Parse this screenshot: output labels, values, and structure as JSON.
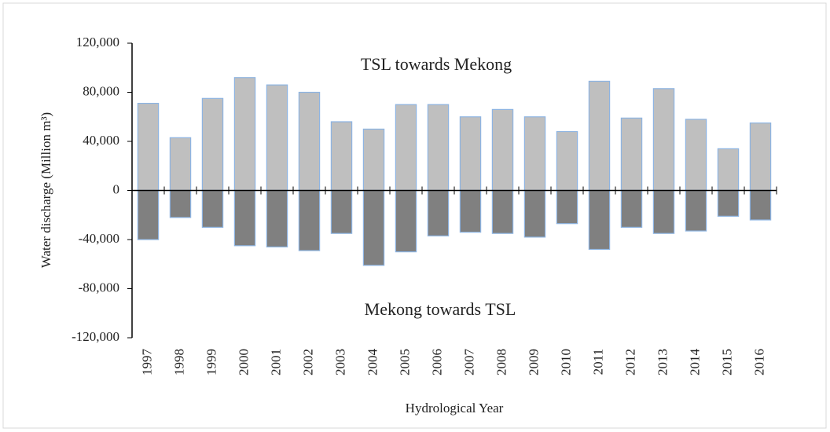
{
  "chart_data": {
    "type": "bar",
    "y_label": "Water discharge (Million m³)",
    "x_label": "Hydrological Year",
    "annotations": [
      "TSL towards Mekong",
      "Mekong towards TSL"
    ],
    "categories": [
      "1997",
      "1998",
      "1999",
      "2000",
      "2001",
      "2002",
      "2003",
      "2004",
      "2005",
      "2006",
      "2007",
      "2008",
      "2009",
      "2010",
      "2011",
      "2012",
      "2013",
      "2014",
      "2015",
      "2016"
    ],
    "series": [
      {
        "color": "#bfbfbf",
        "values": [
          71000,
          43000,
          75000,
          92000,
          86000,
          80000,
          56000,
          50000,
          70000,
          70000,
          60000,
          66000,
          60000,
          48000,
          89000,
          59000,
          83000,
          58000,
          34000,
          55000
        ]
      },
      {
        "color": "#808080",
        "values": [
          -40000,
          -22000,
          -30000,
          -45000,
          -46000,
          -49000,
          -35000,
          -61000,
          -50000,
          -37000,
          -34000,
          -35000,
          -38000,
          -27000,
          -48000,
          -30000,
          -35000,
          -33000,
          -21000,
          -24000
        ]
      }
    ],
    "bar_outline": "#8db4e2",
    "ylim": [
      -120000,
      120000
    ],
    "yticks": [
      {
        "value": -120000,
        "label": "-120,000"
      },
      {
        "value": -80000,
        "label": "-80,000"
      },
      {
        "value": -40000,
        "label": "-40,000"
      },
      0,
      {
        "value": 40000,
        "label": "40,000"
      },
      {
        "value": 80000,
        "label": "80,000"
      },
      {
        "value": 120000,
        "label": "120,000"
      }
    ]
  }
}
